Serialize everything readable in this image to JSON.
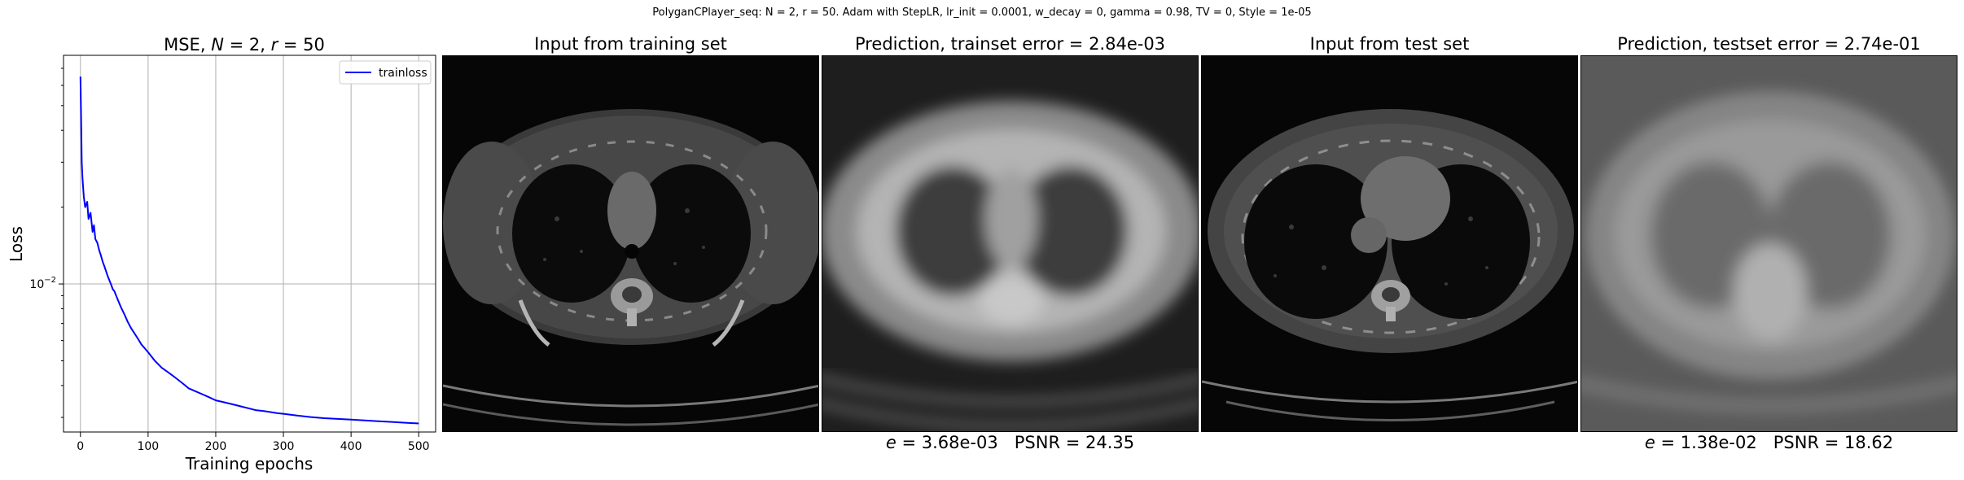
{
  "suptitle": "PolyganCPlayer_seq: N = 2, r = 50. Adam with StepLR, lr_init = 0.0001, w_decay = 0, gamma = 0.98, TV = 0, Style = 1e-05",
  "chart_title": {
    "prefix": "MSE, ",
    "n_var": "N",
    "middle": " = 2, ",
    "r_var": "r",
    "suffix": " = 50"
  },
  "panels": {
    "train_input_title": "Input from training set",
    "train_pred_title": "Prediction, trainset error = 2.84e-03",
    "test_input_title": "Input from test set",
    "test_pred_title": "Prediction, testset error = 2.74e-01"
  },
  "metrics": {
    "train": {
      "e_symbol": "e",
      "e_text": " = 3.68e-03",
      "psnr_text": "PSNR = 24.35"
    },
    "test": {
      "e_symbol": "e",
      "e_text": " = 1.38e-02",
      "psnr_text": "PSNR = 18.62"
    }
  },
  "chart_data": {
    "type": "line",
    "title": "MSE, N = 2, r = 50",
    "xlabel": "Training epochs",
    "ylabel": "Loss",
    "xlim": [
      -25,
      525
    ],
    "ylim": [
      0.00263,
      0.0787
    ],
    "yscale": "log",
    "grid": true,
    "legend_position": "top-right",
    "xticks": [
      0,
      100,
      200,
      300,
      400,
      500
    ],
    "yticks": [
      {
        "value": 0.01,
        "base": "10",
        "exp": "−2"
      }
    ],
    "series": [
      {
        "name": "trainloss",
        "color": "#0000ff",
        "x": [
          0,
          1,
          2,
          3,
          5,
          7,
          10,
          12,
          15,
          18,
          20,
          22,
          25,
          28,
          30,
          33,
          35,
          38,
          40,
          43,
          45,
          48,
          50,
          55,
          60,
          65,
          70,
          75,
          80,
          85,
          90,
          95,
          100,
          110,
          120,
          130,
          140,
          150,
          160,
          170,
          180,
          190,
          200,
          210,
          220,
          230,
          240,
          250,
          260,
          270,
          280,
          290,
          300,
          320,
          340,
          360,
          380,
          400,
          420,
          440,
          460,
          480,
          500
        ],
        "y": [
          0.065,
          0.045,
          0.03,
          0.026,
          0.022,
          0.02,
          0.021,
          0.018,
          0.019,
          0.016,
          0.017,
          0.015,
          0.0145,
          0.0135,
          0.013,
          0.0122,
          0.0118,
          0.0112,
          0.0108,
          0.0103,
          0.01,
          0.0095,
          0.0094,
          0.0087,
          0.0081,
          0.0076,
          0.0071,
          0.0067,
          0.0064,
          0.0061,
          0.0058,
          0.0056,
          0.0054,
          0.005,
          0.0047,
          0.0045,
          0.0043,
          0.0041,
          0.0039,
          0.0038,
          0.0037,
          0.0036,
          0.0035,
          0.00345,
          0.0034,
          0.00335,
          0.0033,
          0.00325,
          0.0032,
          0.00318,
          0.00315,
          0.00312,
          0.0031,
          0.00305,
          0.00301,
          0.00298,
          0.00296,
          0.00294,
          0.00292,
          0.0029,
          0.00288,
          0.00286,
          0.00284
        ]
      }
    ]
  }
}
